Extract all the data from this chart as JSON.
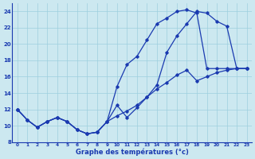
{
  "xlabel": "Graphe des températures (°c)",
  "xlim_min": -0.5,
  "xlim_max": 23.5,
  "ylim_min": 8,
  "ylim_max": 25,
  "xticks": [
    0,
    1,
    2,
    3,
    4,
    5,
    6,
    7,
    8,
    9,
    10,
    11,
    12,
    13,
    14,
    15,
    16,
    17,
    18,
    19,
    20,
    21,
    22,
    23
  ],
  "yticks": [
    8,
    10,
    12,
    14,
    16,
    18,
    20,
    22,
    24
  ],
  "bg_color": "#cce8f0",
  "grid_color": "#9ecfde",
  "line_color": "#1a3ab0",
  "line1_x": [
    0,
    1,
    2,
    3,
    4,
    5,
    6,
    7,
    8,
    9,
    10,
    11,
    12,
    13,
    14,
    15,
    16,
    17,
    18,
    19,
    20,
    21,
    22,
    23
  ],
  "line1_y": [
    12.0,
    10.7,
    9.8,
    10.5,
    11.0,
    10.5,
    9.5,
    9.0,
    9.2,
    10.5,
    12.5,
    11.0,
    12.2,
    13.5,
    15.0,
    19.0,
    21.0,
    22.5,
    24.0,
    23.8,
    22.8,
    22.2,
    17.0,
    17.0
  ],
  "line2_x": [
    0,
    1,
    2,
    3,
    4,
    5,
    6,
    7,
    8,
    9,
    10,
    11,
    12,
    13,
    14,
    15,
    16,
    17,
    18,
    19,
    20,
    21,
    22,
    23
  ],
  "line2_y": [
    12.0,
    10.7,
    9.8,
    10.5,
    11.0,
    10.5,
    9.5,
    9.0,
    9.2,
    10.5,
    14.8,
    17.5,
    18.5,
    20.5,
    22.5,
    23.2,
    24.0,
    24.2,
    23.8,
    17.0,
    17.0,
    17.0,
    17.0,
    17.0
  ],
  "line3_x": [
    0,
    1,
    2,
    3,
    4,
    5,
    6,
    7,
    8,
    9,
    10,
    11,
    12,
    13,
    14,
    15,
    16,
    17,
    18,
    19,
    20,
    21,
    22,
    23
  ],
  "line3_y": [
    12.0,
    10.7,
    9.8,
    10.5,
    11.0,
    10.5,
    9.5,
    9.0,
    9.2,
    10.5,
    11.2,
    11.8,
    12.5,
    13.5,
    14.5,
    15.3,
    16.2,
    16.8,
    15.5,
    16.0,
    16.5,
    16.8,
    17.0,
    17.0
  ]
}
